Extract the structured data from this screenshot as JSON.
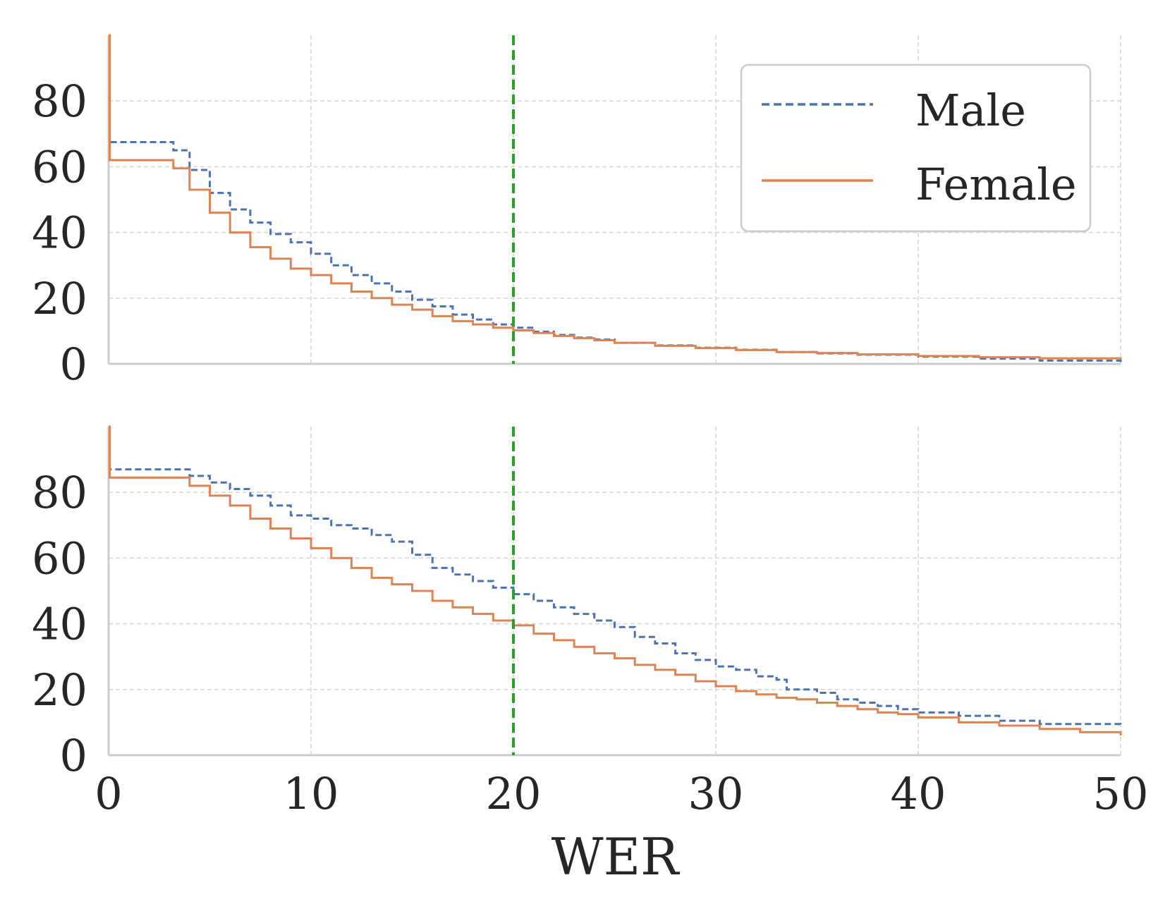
{
  "chart_data": [
    {
      "type": "line",
      "panel": "top",
      "xlim": [
        0,
        50
      ],
      "ylim": [
        0,
        100
      ],
      "yticks": [
        0,
        20,
        40,
        60,
        80
      ],
      "xlabel": "",
      "ylabel": "",
      "vline_x": 20,
      "legend": {
        "placement": "top-right",
        "entries": [
          "Male",
          "Female"
        ]
      },
      "series": [
        {
          "name": "Male",
          "color": "#4c72b0",
          "style": "dashed",
          "x": [
            0,
            0.05,
            2.2,
            3.2,
            4,
            5,
            6,
            7,
            8,
            9,
            10,
            11,
            12,
            13,
            14,
            15,
            16,
            17,
            18,
            19,
            20,
            21,
            22,
            23,
            24,
            25,
            27,
            29,
            31,
            33,
            35,
            37,
            40,
            43,
            46,
            50
          ],
          "y": [
            100,
            67.5,
            67.5,
            65,
            59,
            52,
            47,
            43,
            39.5,
            37,
            33.5,
            30,
            27,
            24.5,
            22,
            19.5,
            17.5,
            15,
            13.5,
            12,
            11,
            9.8,
            8.8,
            8,
            7.4,
            6.4,
            5.6,
            4.9,
            4.3,
            3.6,
            3.2,
            2.8,
            2.2,
            1.6,
            1,
            0.6
          ]
        },
        {
          "name": "Female",
          "color": "#dd8452",
          "style": "solid",
          "x": [
            0,
            0.05,
            2.2,
            3.2,
            4,
            5,
            6,
            7,
            8,
            9,
            10,
            11,
            12,
            13,
            14,
            15,
            16,
            17,
            18,
            19,
            20,
            21,
            22,
            23,
            24,
            25,
            27,
            29,
            31,
            33,
            35,
            37,
            40,
            43,
            46,
            50
          ],
          "y": [
            100,
            62,
            62,
            59.5,
            53,
            46,
            40,
            35.5,
            32,
            29,
            27,
            24.5,
            22,
            20,
            18,
            16.5,
            14.5,
            13,
            12,
            11,
            10.2,
            9.4,
            8.5,
            7.8,
            7.2,
            6.4,
            5.5,
            4.8,
            4.2,
            3.6,
            3.3,
            2.9,
            2.4,
            2,
            1.7,
            1.3
          ]
        }
      ]
    },
    {
      "type": "line",
      "panel": "bottom",
      "xlim": [
        0,
        50
      ],
      "ylim": [
        0,
        100
      ],
      "xticks": [
        0,
        10,
        20,
        30,
        40,
        50
      ],
      "yticks": [
        0,
        20,
        40,
        60,
        80
      ],
      "xlabel": "WER",
      "ylabel": "",
      "vline_x": 20,
      "series": [
        {
          "name": "Male",
          "color": "#4c72b0",
          "style": "dashed",
          "x": [
            0,
            0.05,
            3.2,
            4,
            5,
            6,
            7,
            8,
            9,
            10,
            11,
            12,
            13,
            14,
            15,
            16,
            17,
            18,
            19,
            20,
            21,
            22,
            23,
            24,
            25,
            26,
            27,
            28,
            29,
            30,
            31,
            32,
            33,
            33.5,
            35,
            36,
            37,
            38,
            39,
            40,
            42,
            44,
            46,
            50
          ],
          "y": [
            100,
            87,
            87,
            85,
            83,
            81,
            79,
            76,
            73,
            72,
            70,
            69,
            67,
            65,
            61,
            57,
            55,
            53,
            51,
            49,
            47,
            45,
            43,
            41,
            39,
            36,
            34,
            31,
            29,
            27,
            26,
            24,
            23,
            20,
            19,
            17,
            16,
            15,
            14,
            13,
            12,
            10.5,
            9.5,
            9
          ]
        },
        {
          "name": "Female",
          "color": "#dd8452",
          "style": "solid",
          "x": [
            0,
            0.05,
            3.2,
            4,
            5,
            6,
            7,
            8,
            9,
            10,
            11,
            12,
            13,
            14,
            15,
            16,
            17,
            18,
            19,
            20,
            21,
            22,
            23,
            24,
            25,
            26,
            27,
            28,
            29,
            30,
            31,
            32,
            33,
            34,
            35,
            36,
            37,
            38,
            39,
            40,
            42,
            44,
            46,
            48,
            50
          ],
          "y": [
            100,
            84.5,
            84.5,
            82,
            79,
            76,
            72,
            69,
            66,
            63,
            60,
            57,
            54,
            52,
            50,
            47,
            45,
            43,
            41,
            39.5,
            37,
            35,
            33,
            31,
            29.5,
            27.5,
            26,
            24.5,
            22.5,
            21,
            19.5,
            18.5,
            17.5,
            17,
            16,
            15,
            14,
            13,
            12.5,
            11.5,
            10,
            9,
            8,
            7,
            6
          ]
        }
      ]
    }
  ]
}
